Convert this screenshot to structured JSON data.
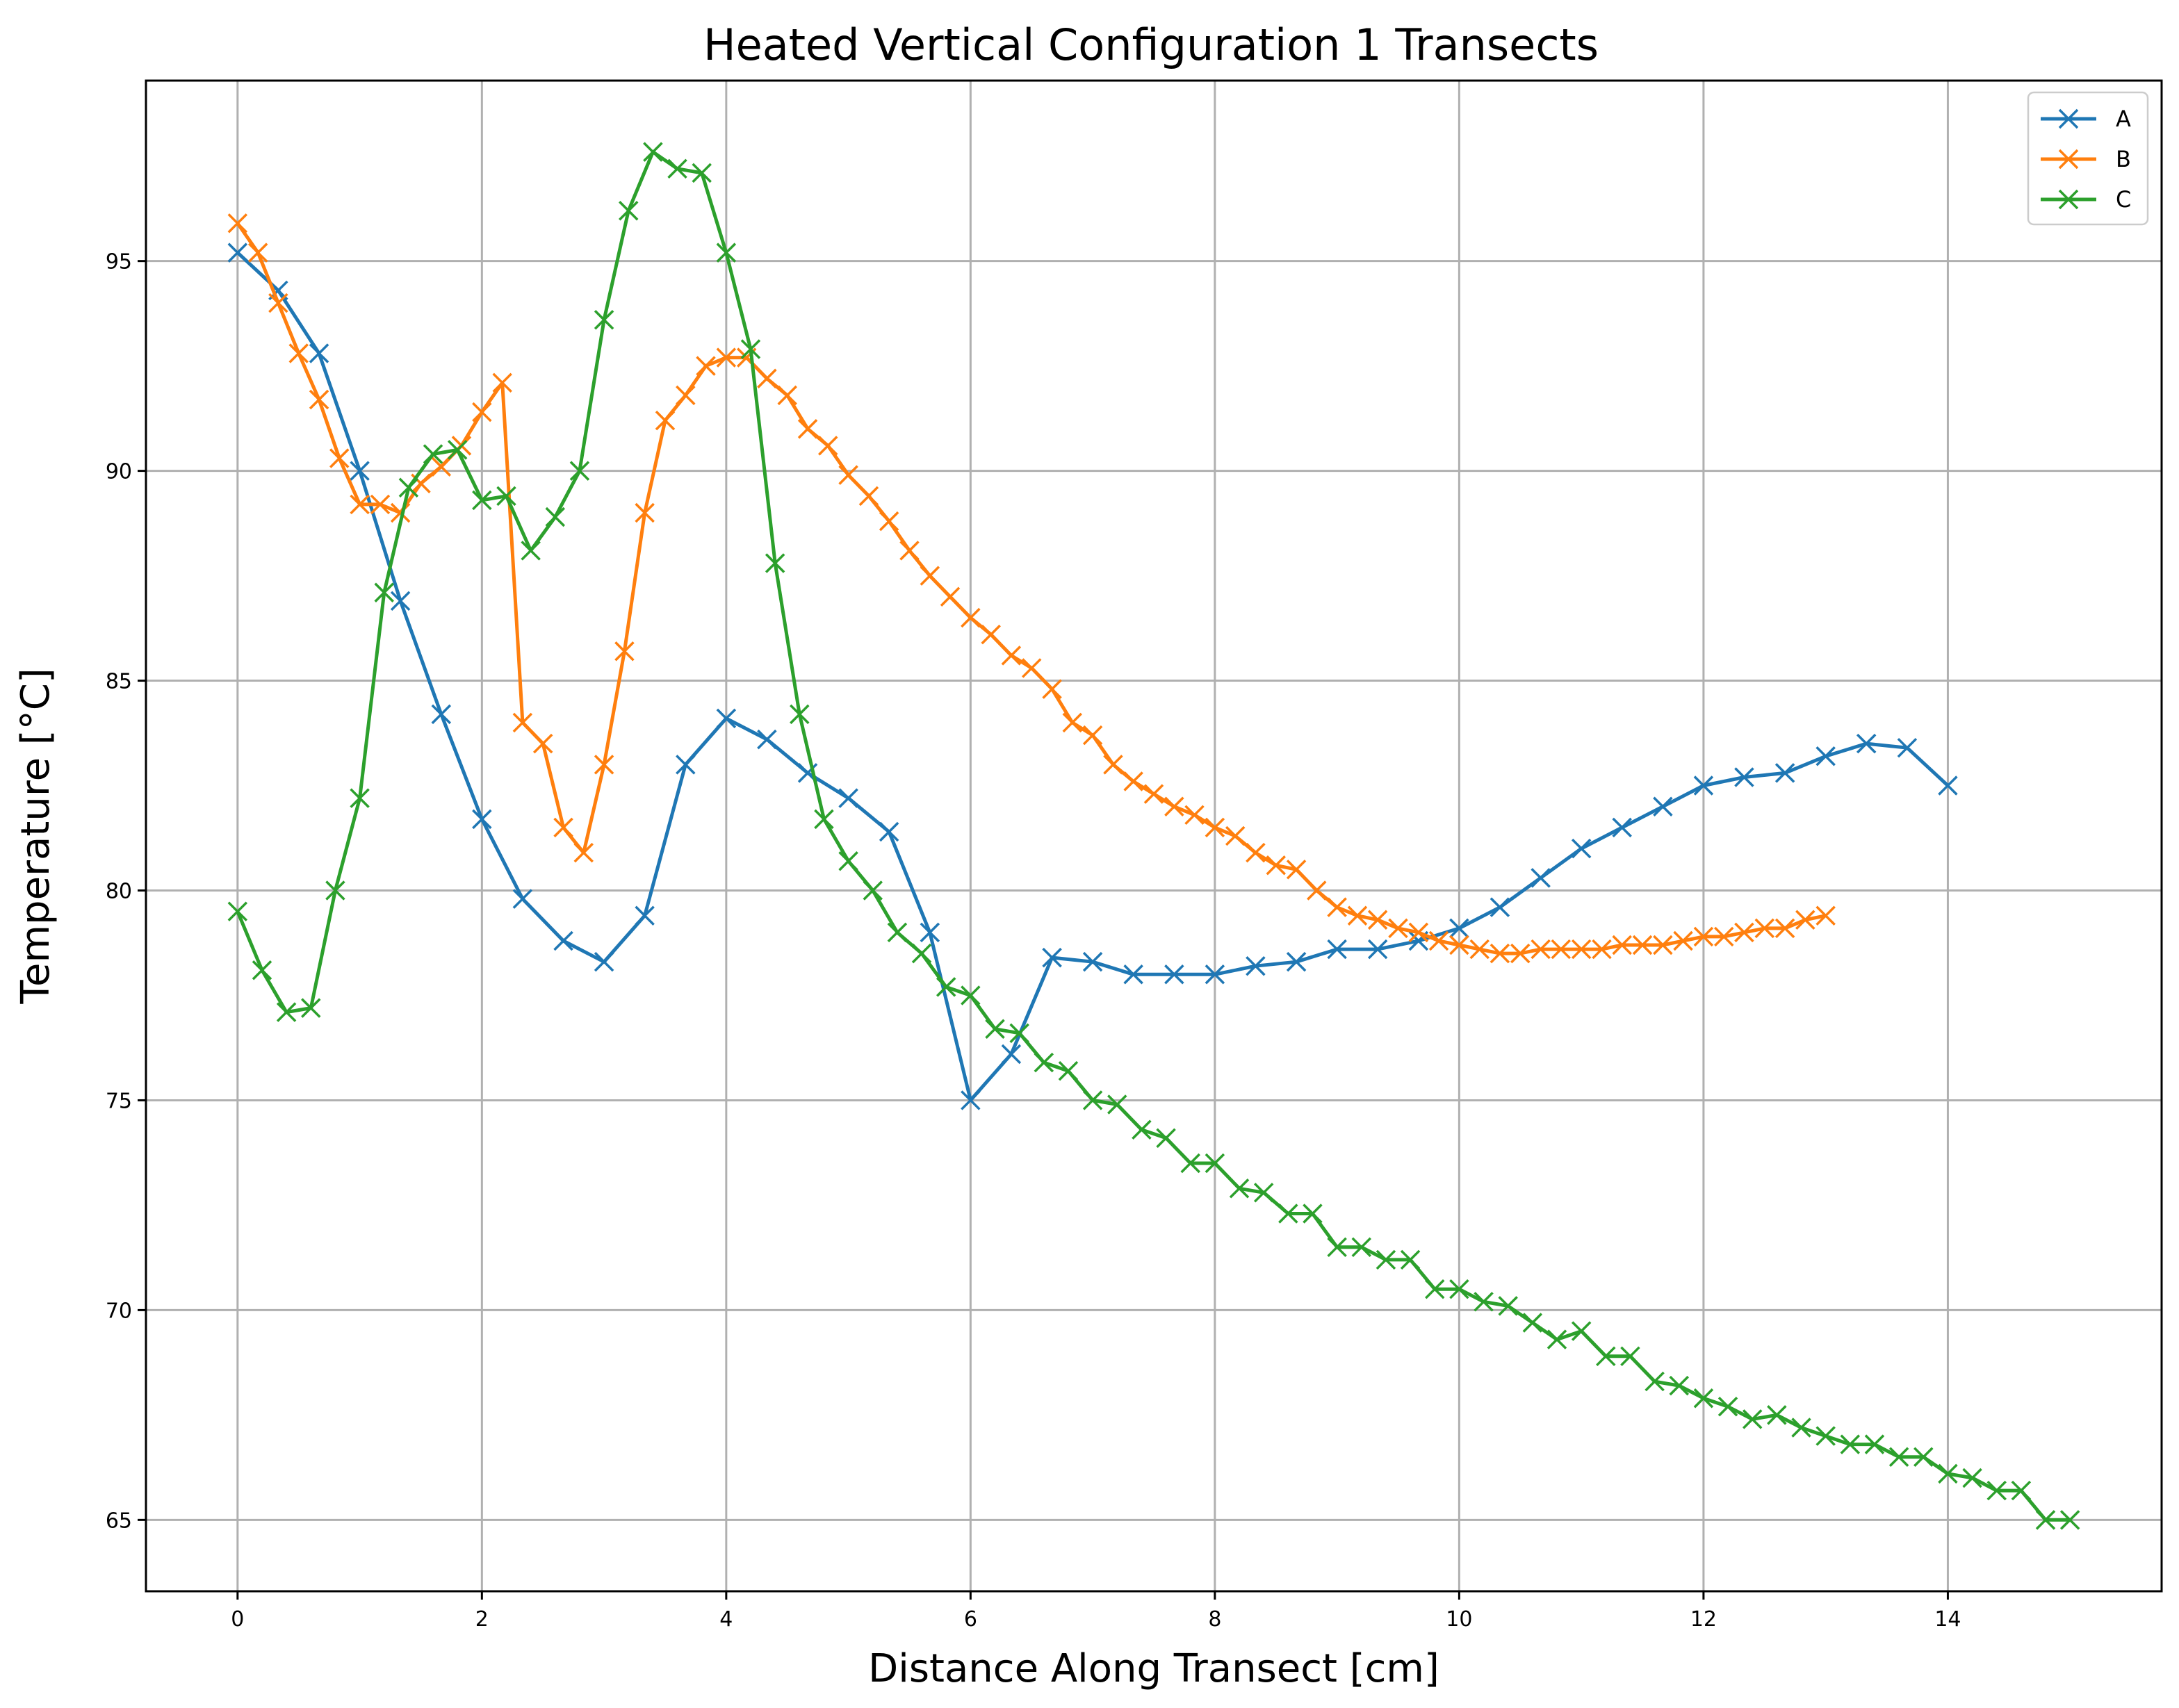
{
  "chart_data": {
    "type": "line",
    "title": "Heated Vertical Configuration 1 Transects",
    "xlabel": "Distance Along Transect [cm]",
    "ylabel": "Temperature [°C]",
    "xlim": [
      -0.75,
      15.75
    ],
    "ylim": [
      63.3,
      99.3
    ],
    "xticks": [
      0,
      2,
      4,
      6,
      8,
      10,
      12,
      14
    ],
    "yticks": [
      65,
      70,
      75,
      80,
      85,
      90,
      95
    ],
    "grid": true,
    "legend_position": "top-right",
    "series": [
      {
        "name": "A",
        "color": "#1f77b4",
        "x": [
          0,
          0.333,
          0.667,
          1.0,
          1.333,
          1.667,
          2.0,
          2.333,
          2.667,
          3.0,
          3.333,
          3.667,
          4.0,
          4.333,
          4.667,
          5.0,
          5.333,
          5.667,
          6.0,
          6.333,
          6.667,
          7.0,
          7.333,
          7.667,
          8.0,
          8.333,
          8.667,
          9.0,
          9.333,
          9.667,
          10.0,
          10.333,
          10.667,
          11.0,
          11.333,
          11.667,
          12.0,
          12.333,
          12.667,
          13.0,
          13.333,
          13.667,
          14.0
        ],
        "y": [
          95.2,
          94.3,
          92.8,
          90.0,
          86.9,
          84.2,
          81.7,
          79.8,
          78.8,
          78.3,
          79.4,
          83.0,
          84.1,
          83.6,
          82.8,
          82.2,
          81.4,
          79.0,
          75.0,
          76.1,
          78.4,
          78.3,
          78.0,
          78.0,
          78.0,
          78.2,
          78.3,
          78.6,
          78.6,
          78.8,
          79.1,
          79.6,
          80.3,
          81.0,
          81.5,
          82.0,
          82.5,
          82.7,
          82.8,
          83.2,
          83.5,
          83.4,
          82.5
        ]
      },
      {
        "name": "B",
        "color": "#ff7f0e",
        "x": [
          0,
          0.167,
          0.333,
          0.5,
          0.667,
          0.833,
          1.0,
          1.167,
          1.333,
          1.5,
          1.667,
          1.833,
          2.0,
          2.167,
          2.333,
          2.5,
          2.667,
          2.833,
          3.0,
          3.167,
          3.333,
          3.5,
          3.667,
          3.833,
          4.0,
          4.167,
          4.333,
          4.5,
          4.667,
          4.833,
          5.0,
          5.167,
          5.333,
          5.5,
          5.667,
          5.833,
          6.0,
          6.167,
          6.333,
          6.5,
          6.667,
          6.833,
          7.0,
          7.167,
          7.333,
          7.5,
          7.667,
          7.833,
          8.0,
          8.167,
          8.333,
          8.5,
          8.667,
          8.833,
          9.0,
          9.167,
          9.333,
          9.5,
          9.667,
          9.833,
          10.0,
          10.167,
          10.333,
          10.5,
          10.667,
          10.833,
          11.0,
          11.167,
          11.333,
          11.5,
          11.667,
          11.833,
          12.0,
          12.167,
          12.333,
          12.5,
          12.667,
          12.833,
          13.0
        ],
        "y": [
          95.9,
          95.2,
          94.0,
          92.8,
          91.7,
          90.3,
          89.2,
          89.2,
          89.0,
          89.7,
          90.1,
          90.6,
          91.4,
          92.1,
          84.0,
          83.5,
          81.5,
          80.9,
          83.0,
          85.7,
          89.0,
          91.2,
          91.8,
          92.5,
          92.7,
          92.7,
          92.2,
          91.8,
          91.0,
          90.6,
          89.9,
          89.4,
          88.8,
          88.1,
          87.5,
          87.0,
          86.5,
          86.1,
          85.6,
          85.3,
          84.8,
          84.0,
          83.7,
          83.0,
          82.6,
          82.3,
          82.0,
          81.8,
          81.5,
          81.3,
          80.9,
          80.6,
          80.5,
          80.0,
          79.6,
          79.4,
          79.3,
          79.1,
          79.0,
          78.8,
          78.7,
          78.6,
          78.5,
          78.5,
          78.6,
          78.6,
          78.6,
          78.6,
          78.7,
          78.7,
          78.7,
          78.8,
          78.9,
          78.9,
          79.0,
          79.1,
          79.1,
          79.3,
          79.4
        ]
      },
      {
        "name": "C",
        "color": "#2ca02c",
        "x": [
          0,
          0.2,
          0.4,
          0.6,
          0.8,
          1.0,
          1.2,
          1.4,
          1.6,
          1.8,
          2.0,
          2.2,
          2.4,
          2.6,
          2.8,
          3.0,
          3.2,
          3.4,
          3.6,
          3.8,
          4.0,
          4.2,
          4.4,
          4.6,
          4.8,
          5.0,
          5.2,
          5.4,
          5.6,
          5.8,
          6.0,
          6.2,
          6.4,
          6.6,
          6.8,
          7.0,
          7.2,
          7.4,
          7.6,
          7.8,
          8.0,
          8.2,
          8.4,
          8.6,
          8.8,
          9.0,
          9.2,
          9.4,
          9.6,
          9.8,
          10.0,
          10.2,
          10.4,
          10.6,
          10.8,
          11.0,
          11.2,
          11.4,
          11.6,
          11.8,
          12.0,
          12.2,
          12.4,
          12.6,
          12.8,
          13.0,
          13.2,
          13.4,
          13.6,
          13.8,
          14.0,
          14.2,
          14.4,
          14.6,
          14.8,
          15.0
        ],
        "y": [
          79.5,
          78.1,
          77.1,
          77.2,
          80.0,
          82.2,
          87.1,
          89.6,
          90.4,
          90.5,
          89.3,
          89.4,
          88.1,
          88.9,
          90.0,
          93.6,
          96.2,
          97.6,
          97.2,
          97.1,
          95.2,
          92.9,
          87.8,
          84.2,
          81.7,
          80.7,
          80.0,
          79.0,
          78.5,
          77.7,
          77.5,
          76.7,
          76.6,
          75.9,
          75.7,
          75.0,
          74.9,
          74.3,
          74.1,
          73.5,
          73.5,
          72.9,
          72.8,
          72.3,
          72.3,
          71.5,
          71.5,
          71.2,
          71.2,
          70.5,
          70.5,
          70.2,
          70.1,
          69.7,
          69.3,
          69.5,
          68.9,
          68.9,
          68.3,
          68.2,
          67.9,
          67.7,
          67.4,
          67.5,
          67.2,
          67.0,
          66.8,
          66.8,
          66.5,
          66.5,
          66.1,
          66.0,
          65.7,
          65.7,
          65.0,
          65.0
        ]
      }
    ]
  }
}
